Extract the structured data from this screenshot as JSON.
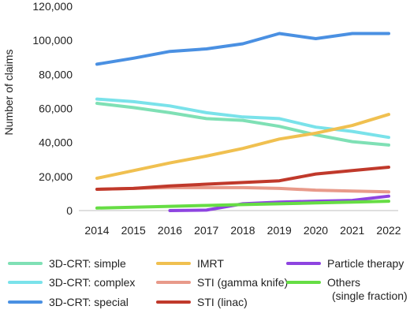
{
  "chart_data": {
    "type": "line",
    "title": "",
    "xlabel": "",
    "ylabel": "Number of claims",
    "x": [
      "2014",
      "2015",
      "2016",
      "2017",
      "2018",
      "2019",
      "2020",
      "2021",
      "2022"
    ],
    "ylim": [
      0,
      120000
    ],
    "yticks": [
      0,
      20000,
      40000,
      60000,
      80000,
      100000,
      120000
    ],
    "ytick_labels": [
      "0",
      "20,000",
      "40,000",
      "60,000",
      "80,000",
      "100,000",
      "120,000"
    ],
    "grid": false,
    "legend_position": "bottom",
    "series": [
      {
        "name": "3D-CRT: simple",
        "color": "#7fe0b5",
        "values": [
          63000,
          60500,
          57500,
          54000,
          53000,
          49500,
          44500,
          40500,
          38500
        ]
      },
      {
        "name": "3D-CRT: complex",
        "color": "#7ae2ea",
        "values": [
          65500,
          64000,
          61500,
          57500,
          55000,
          54000,
          49000,
          46500,
          43000
        ]
      },
      {
        "name": "3D-CRT: special",
        "color": "#4a90e2",
        "values": [
          86000,
          89500,
          93500,
          95000,
          98000,
          104000,
          101000,
          104000,
          104000
        ]
      },
      {
        "name": "IMRT",
        "color": "#f0c050",
        "values": [
          19000,
          23500,
          28000,
          32000,
          36500,
          42000,
          45500,
          50000,
          56500
        ]
      },
      {
        "name": "STI (gamma knife)",
        "color": "#e89a8a",
        "values": [
          12500,
          13000,
          13500,
          13500,
          13500,
          13000,
          12000,
          11500,
          11000
        ]
      },
      {
        "name": "STI (linac)",
        "color": "#c0392b",
        "values": [
          12500,
          13000,
          14500,
          15500,
          16500,
          17500,
          21500,
          23500,
          25500
        ]
      },
      {
        "name": "Particle therapy",
        "color": "#8e44e0",
        "values": [
          null,
          null,
          0,
          300,
          4000,
          5000,
          5500,
          6000,
          8500
        ]
      },
      {
        "name": "Others",
        "name_line2": "(single fraction)",
        "color": "#66dd44",
        "values": [
          1500,
          2000,
          2500,
          3000,
          3500,
          4000,
          4500,
          5000,
          5500
        ]
      }
    ]
  }
}
